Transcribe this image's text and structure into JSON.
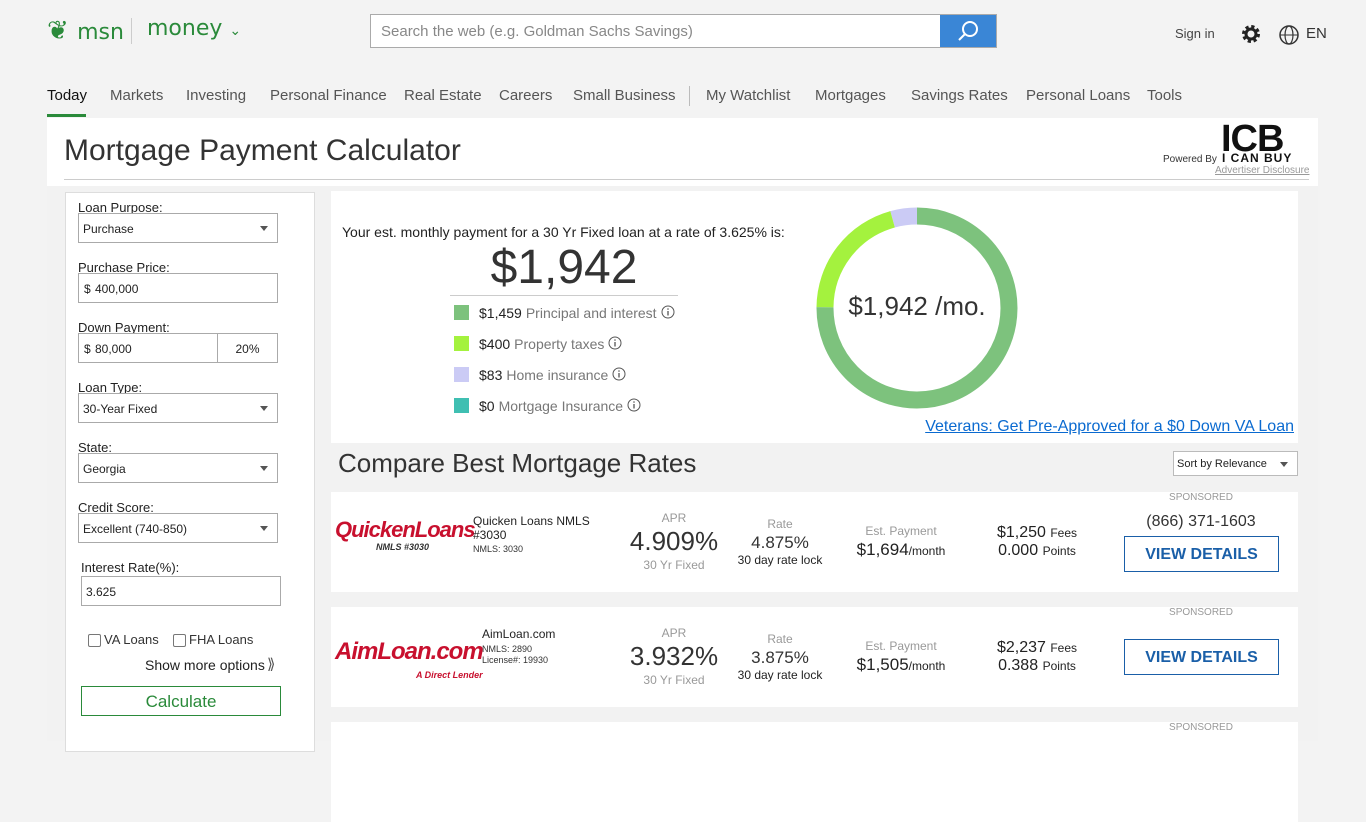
{
  "header": {
    "logo": "msn",
    "section": "money",
    "search_placeholder": "Search the web (e.g. Goldman Sachs Savings)",
    "sign_in": "Sign in",
    "language": "EN"
  },
  "nav": {
    "items": [
      "Today",
      "Markets",
      "Investing",
      "Personal Finance",
      "Real Estate",
      "Careers",
      "Small Business",
      "My Watchlist",
      "Mortgages",
      "Savings Rates",
      "Personal Loans",
      "Tools"
    ],
    "active": 0
  },
  "page": {
    "title": "Mortgage Payment Calculator",
    "powered_by": "Powered By",
    "sponsor_logo": "ICB",
    "sponsor_name": "I CAN BUY",
    "disclosure": "Advertiser Disclosure"
  },
  "form": {
    "fields": [
      {
        "label": "Loan Purpose:",
        "value": "Purchase",
        "control": "select"
      },
      {
        "label": "Purchase Price:",
        "prefix": "$",
        "value": "400,000",
        "control": "text"
      },
      {
        "label": "Down Payment:",
        "prefix": "$",
        "value": "80,000",
        "extra": "20%",
        "control": "text"
      },
      {
        "label": "Loan Type:",
        "value": "30-Year Fixed",
        "control": "select"
      },
      {
        "label": "State:",
        "value": "Georgia",
        "control": "select"
      },
      {
        "label": "Credit Score:",
        "value": "Excellent (740-850)",
        "control": "select"
      },
      {
        "label": "Interest Rate(%):",
        "value": "3.625",
        "control": "text"
      }
    ],
    "checkboxes": [
      "VA Loans",
      "FHA Loans"
    ],
    "show_more": "Show more options",
    "button": "Calculate"
  },
  "summary": {
    "intro": "Your est. monthly payment for a 30 Yr Fixed loan at a rate of 3.625% is:",
    "total": "$1,942",
    "donut_label": "$1,942 /mo.",
    "breakdown": [
      {
        "amount": "$1,459",
        "value": 1459,
        "label": "Principal and interest",
        "color": "#7dc27d"
      },
      {
        "amount": "$400",
        "value": 400,
        "label": "Property taxes",
        "color": "#a4f23e"
      },
      {
        "amount": "$83",
        "value": 83,
        "label": "Home insurance",
        "color": "#cbcbf5"
      },
      {
        "amount": "$0",
        "value": 0,
        "label": "Mortgage Insurance",
        "color": "#3fbfb2"
      }
    ],
    "link": "Veterans: Get Pre-Approved for a $0 Down VA Loan"
  },
  "compare": {
    "title": "Compare Best Mortgage Rates",
    "sort": "Sort by Relevance",
    "offers": [
      {
        "sponsored": "SPONSORED",
        "logo": "QuickenLoans",
        "logo_sub": "NMLS #3030",
        "name": "Quicken Loans NMLS #3030",
        "details": [
          "NMLS: 3030"
        ],
        "apr_label": "APR",
        "apr": "4.909%",
        "apr_term": "30 Yr Fixed",
        "rate_label": "Rate",
        "rate": "4.875%",
        "rate_lock": "30 day rate lock",
        "payment_label": "Est. Payment",
        "payment": "$1,694",
        "payment_unit": "/month",
        "fees": "$1,250",
        "fees_label": "Fees",
        "points": "0.000",
        "points_label": "Points",
        "phone": "(866) 371-1603",
        "button": "VIEW DETAILS"
      },
      {
        "sponsored": "SPONSORED",
        "logo": "AimLoan.com",
        "logo_sub": "A Direct Lender",
        "name": "AimLoan.com",
        "details": [
          "NMLS: 2890",
          "License#: 19930"
        ],
        "apr_label": "APR",
        "apr": "3.932%",
        "apr_term": "30 Yr Fixed",
        "rate_label": "Rate",
        "rate": "3.875%",
        "rate_lock": "30 day rate lock",
        "payment_label": "Est. Payment",
        "payment": "$1,505",
        "payment_unit": "/month",
        "fees": "$2,237",
        "fees_label": "Fees",
        "points": "0.388",
        "points_label": "Points",
        "button": "VIEW DETAILS"
      },
      {
        "sponsored": "SPONSORED"
      }
    ]
  }
}
